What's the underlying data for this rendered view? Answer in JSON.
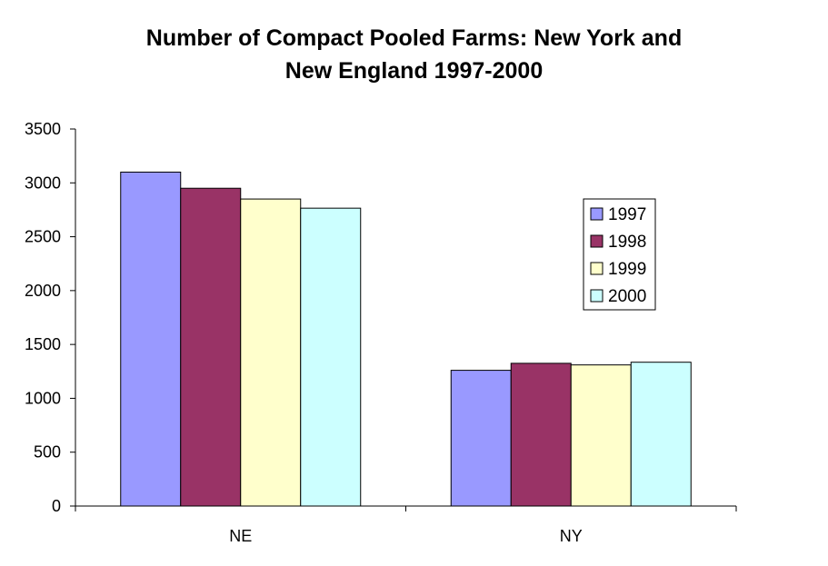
{
  "chart_data": {
    "type": "bar",
    "title_lines": [
      "Number of Compact Pooled Farms: New York and",
      "New England 1997-2000"
    ],
    "categories": [
      "NE",
      "NY"
    ],
    "series": [
      {
        "name": "1997",
        "values": [
          3100,
          1260
        ],
        "color": "#9999FF"
      },
      {
        "name": "1998",
        "values": [
          2950,
          1325
        ],
        "color": "#993366"
      },
      {
        "name": "1999",
        "values": [
          2850,
          1310
        ],
        "color": "#FFFFCC"
      },
      {
        "name": "2000",
        "values": [
          2765,
          1335
        ],
        "color": "#CCFFFF"
      }
    ],
    "y_ticks": [
      "0",
      "500",
      "1000",
      "1500",
      "2000",
      "2500",
      "3000",
      "3500"
    ],
    "ylim": [
      0,
      3500
    ],
    "xlabel": "",
    "ylabel": "",
    "legend": "right"
  }
}
